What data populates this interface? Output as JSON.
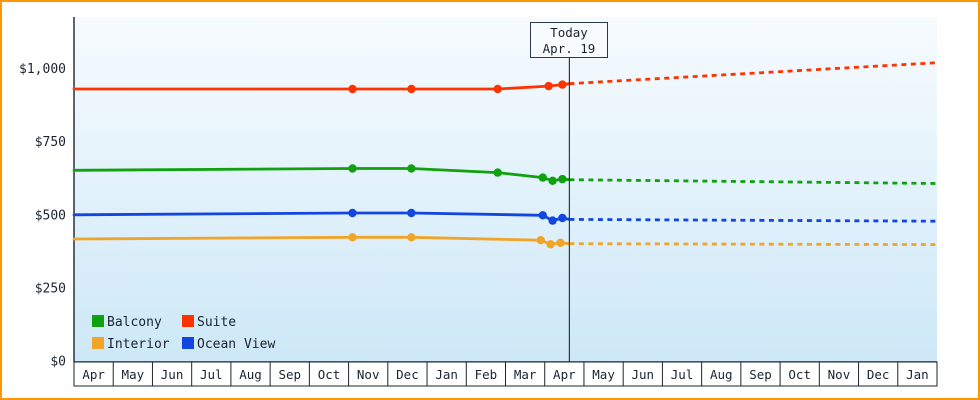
{
  "page": {
    "border_color": "#ff9800",
    "background_color": "#ffffff"
  },
  "chart_data": {
    "type": "line",
    "title": "",
    "xlabel": "",
    "ylabel": "",
    "grid": false,
    "legend_position": "bottom-left",
    "x_months": [
      "Apr",
      "May",
      "Jun",
      "Jul",
      "Aug",
      "Sep",
      "Oct",
      "Nov",
      "Dec",
      "Jan",
      "Feb",
      "Mar",
      "Apr",
      "May",
      "Jun",
      "Jul",
      "Aug",
      "Sep",
      "Oct",
      "Nov",
      "Dec",
      "Jan"
    ],
    "y_ticks": [
      {
        "label": "$0",
        "value": 0
      },
      {
        "label": "$250",
        "value": 250
      },
      {
        "label": "$500",
        "value": 500
      },
      {
        "label": "$750",
        "value": 750
      },
      {
        "label": "$1,000",
        "value": 1000
      }
    ],
    "ylim": [
      0,
      1180
    ],
    "today": {
      "x": 12.63,
      "line1": "Today",
      "line2": "Apr. 19"
    },
    "legend": [
      {
        "label": "Balcony",
        "color": "#10a010"
      },
      {
        "label": "Suite",
        "color": "#ff3300"
      },
      {
        "label": "Interior",
        "color": "#f0a428"
      },
      {
        "label": "Ocean View",
        "color": "#1345e0"
      }
    ],
    "series": [
      {
        "name": "Balcony",
        "color": "#10a010",
        "history": [
          {
            "x": 0.0,
            "y": 652
          },
          {
            "x": 7.1,
            "y": 658,
            "marker": true
          },
          {
            "x": 8.6,
            "y": 658,
            "marker": true
          },
          {
            "x": 10.8,
            "y": 644,
            "marker": true
          },
          {
            "x": 11.95,
            "y": 627,
            "marker": true
          },
          {
            "x": 12.2,
            "y": 616,
            "marker": true
          },
          {
            "x": 12.45,
            "y": 622,
            "marker": true
          }
        ],
        "forecast": [
          {
            "x": 12.63,
            "y": 620
          },
          {
            "x": 22.0,
            "y": 607
          }
        ]
      },
      {
        "name": "Suite",
        "color": "#ff3300",
        "history": [
          {
            "x": 0.0,
            "y": 930
          },
          {
            "x": 7.1,
            "y": 930,
            "marker": true
          },
          {
            "x": 8.6,
            "y": 930,
            "marker": true
          },
          {
            "x": 10.8,
            "y": 930,
            "marker": true
          },
          {
            "x": 12.1,
            "y": 940,
            "marker": true
          },
          {
            "x": 12.45,
            "y": 945,
            "marker": true
          }
        ],
        "forecast": [
          {
            "x": 12.63,
            "y": 948
          },
          {
            "x": 22.0,
            "y": 1020
          }
        ]
      },
      {
        "name": "Interior",
        "color": "#f0a428",
        "history": [
          {
            "x": 0.0,
            "y": 417
          },
          {
            "x": 7.1,
            "y": 423,
            "marker": true
          },
          {
            "x": 8.6,
            "y": 423,
            "marker": true
          },
          {
            "x": 11.9,
            "y": 413,
            "marker": true
          },
          {
            "x": 12.15,
            "y": 399,
            "marker": true
          },
          {
            "x": 12.4,
            "y": 404,
            "marker": true
          }
        ],
        "forecast": [
          {
            "x": 12.63,
            "y": 401
          },
          {
            "x": 22.0,
            "y": 398
          }
        ]
      },
      {
        "name": "Ocean View",
        "color": "#1345e0",
        "history": [
          {
            "x": 0.0,
            "y": 500
          },
          {
            "x": 7.1,
            "y": 506,
            "marker": true
          },
          {
            "x": 8.6,
            "y": 506,
            "marker": true
          },
          {
            "x": 11.95,
            "y": 498,
            "marker": true
          },
          {
            "x": 12.2,
            "y": 480,
            "marker": true
          },
          {
            "x": 12.45,
            "y": 489,
            "marker": true
          }
        ],
        "forecast": [
          {
            "x": 12.63,
            "y": 484
          },
          {
            "x": 22.0,
            "y": 478
          }
        ]
      }
    ]
  }
}
